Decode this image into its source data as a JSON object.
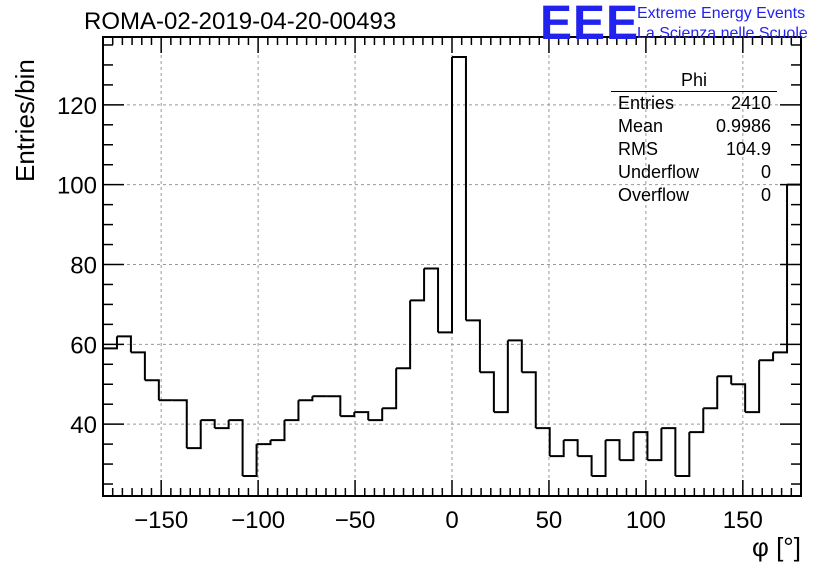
{
  "title": "ROMA-02-2019-04-20-00493",
  "logo": {
    "text": "EEE",
    "line1": "Extreme Energy Events",
    "line2": "La Scienza nelle Scuole",
    "color": "#2222ee"
  },
  "stats": {
    "name": "Phi",
    "rows": [
      {
        "label": "Entries",
        "value": "2410"
      },
      {
        "label": "Mean",
        "value": "0.9986"
      },
      {
        "label": "RMS",
        "value": "104.9"
      },
      {
        "label": "Underflow",
        "value": "0"
      },
      {
        "label": "Overflow",
        "value": "0"
      }
    ]
  },
  "chart_data": {
    "type": "histogram",
    "title": "ROMA-02-2019-04-20-00493",
    "xlabel": "φ [°]",
    "ylabel": "Entries/bin",
    "xlim": [
      -180,
      180
    ],
    "ylim": [
      22,
      137
    ],
    "bin_width": 7.2,
    "x_ticks": [
      -150,
      -100,
      -50,
      0,
      50,
      100,
      150
    ],
    "x_tick_labels": [
      "−150",
      "−100",
      "−50",
      "0",
      "50",
      "100",
      "150"
    ],
    "y_ticks": [
      40,
      60,
      80,
      100,
      120
    ],
    "y_tick_labels": [
      "40",
      "60",
      "80",
      "100",
      "120"
    ],
    "grid": true,
    "values": [
      59,
      62,
      58,
      51,
      46,
      46,
      34,
      41,
      39,
      41,
      27,
      35,
      36,
      41,
      46,
      47,
      47,
      42,
      43,
      41,
      44,
      54,
      71,
      79,
      63,
      132,
      66,
      53,
      43,
      61,
      53,
      39,
      32,
      36,
      32,
      27,
      36,
      31,
      38,
      31,
      39,
      27,
      38,
      44,
      52,
      50,
      43,
      56,
      58,
      100
    ],
    "line_color": "#000000"
  }
}
